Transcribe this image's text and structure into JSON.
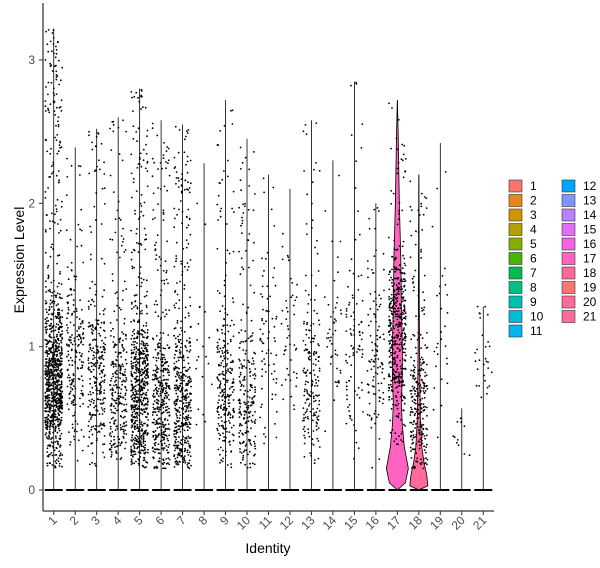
{
  "chart_data": {
    "type": "violin",
    "xlabel": "Identity",
    "ylabel": "Expression Level",
    "ylim": [
      0,
      3.3
    ],
    "yticks": [
      0,
      1,
      2,
      3
    ],
    "categories": [
      "1",
      "2",
      "3",
      "4",
      "5",
      "6",
      "7",
      "8",
      "9",
      "10",
      "11",
      "12",
      "13",
      "14",
      "15",
      "16",
      "17",
      "18",
      "19",
      "20",
      "21"
    ],
    "colors": [
      "#F8766D",
      "#E7851E",
      "#D09400",
      "#B2A100",
      "#89AC00",
      "#45B500",
      "#00BC51",
      "#00C087",
      "#00C0B2",
      "#00BCD6",
      "#00B3F2",
      "#00A6FF",
      "#7F96FF",
      "#BC81FF",
      "#E26EF7",
      "#F863DF",
      "#FF62BF",
      "#FF6A9A",
      "#F8766D",
      "#FF6A9A",
      "#FF6A9A"
    ],
    "max_values": [
      3.22,
      2.39,
      2.52,
      2.6,
      2.8,
      2.58,
      2.55,
      2.28,
      2.72,
      2.45,
      2.2,
      2.1,
      2.58,
      2.3,
      2.85,
      2.0,
      2.72,
      2.2,
      2.42,
      0.57,
      1.28
    ],
    "point_density": [
      1.0,
      0.22,
      0.3,
      0.3,
      0.7,
      0.45,
      0.5,
      0.02,
      0.28,
      0.25,
      0.08,
      0.05,
      0.2,
      0.05,
      0.1,
      0.12,
      0.5,
      0.3,
      0.03,
      0.01,
      0.03
    ],
    "median_nonzero": [
      0.75,
      0.9,
      0.8,
      0.7,
      0.65,
      0.6,
      0.55,
      0.9,
      0.7,
      0.6,
      1.0,
      1.0,
      0.8,
      1.0,
      0.9,
      0.9,
      1.1,
      0.6,
      1.0,
      0.5,
      0.9
    ],
    "legend": {
      "entries": [
        "1",
        "2",
        "3",
        "4",
        "5",
        "6",
        "7",
        "8",
        "9",
        "10",
        "11",
        "12",
        "13",
        "14",
        "15",
        "16",
        "17",
        "18",
        "19",
        "20",
        "21"
      ],
      "columns": 2,
      "position": "right"
    }
  }
}
